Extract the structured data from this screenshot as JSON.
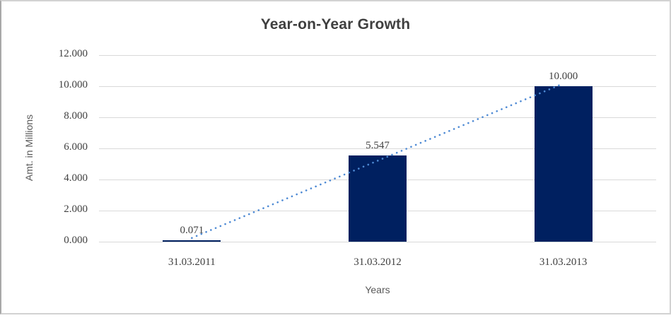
{
  "chart_data": {
    "type": "bar",
    "title": "Year-on-Year Growth",
    "categories": [
      "31.03.2011",
      "31.03.2012",
      "31.03.2013"
    ],
    "values": [
      0.071,
      5.547,
      10.0
    ],
    "data_labels": [
      "0.071",
      "5.547",
      "10.000"
    ],
    "xlabel": "Years",
    "ylabel": "Amt. in Millions",
    "ylim": [
      0,
      12
    ],
    "ytick_labels": [
      "12.000",
      "10.000",
      "8.000",
      "6.000",
      "4.000",
      "2.000",
      "0.000"
    ],
    "grid": true,
    "legend": false,
    "trendline": {
      "type": "linear",
      "style": "dotted",
      "endpoint_values": [
        0.24,
        10.17
      ]
    },
    "colors": {
      "bar": "#002060",
      "trendline": "#4e8ad4",
      "gridline": "#d9d9d9",
      "title_text": "#3f3f3f",
      "tick_text": "#404040",
      "axis_title_text": "#595959",
      "background": "#ffffff",
      "border": "#c9c9c9"
    }
  }
}
